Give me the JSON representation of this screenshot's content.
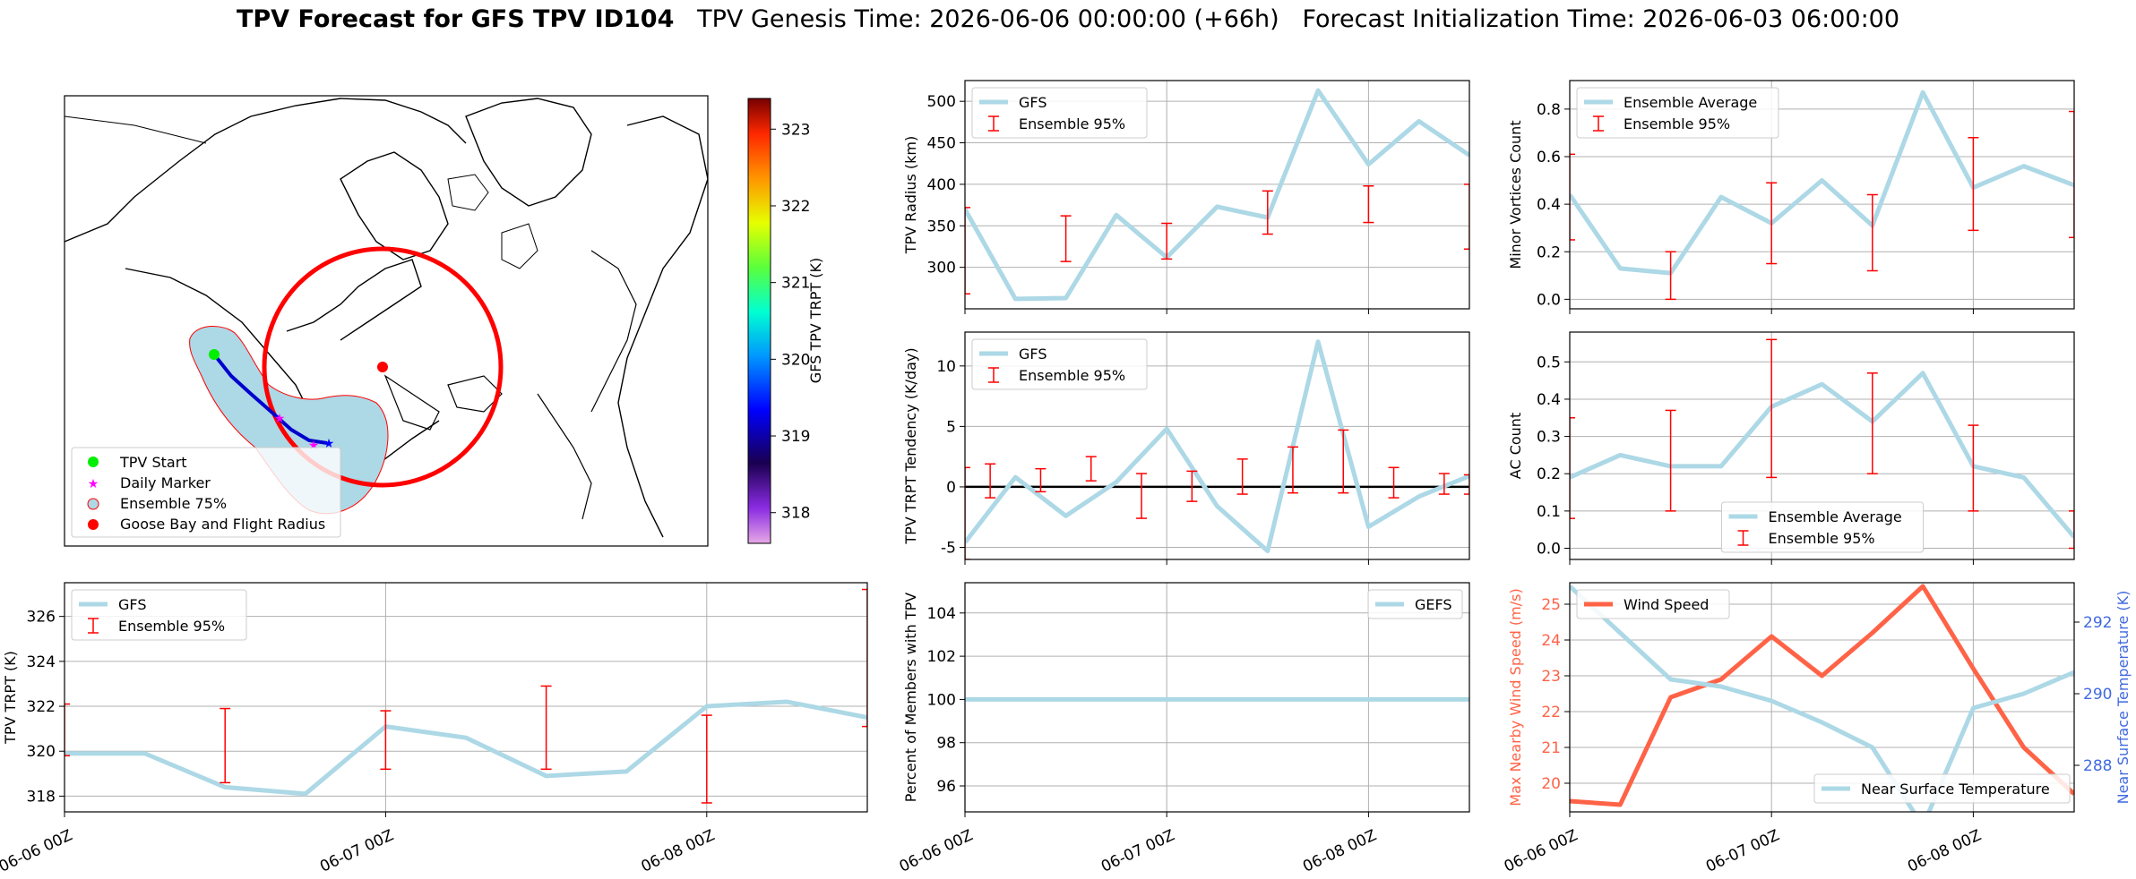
{
  "title": {
    "bold": "TPV Forecast for GFS TPV ID104",
    "genesis": "TPV Genesis Time: 2026-06-06 00:00:00 (+66h)",
    "init": "Forecast Initialization Time: 2026-06-03 06:00:00"
  },
  "colors": {
    "gfs_line": "#add8e6",
    "errorbar": "#ff0000",
    "wind": "#ff6347",
    "temp_axis": "#4169e1",
    "grid": "#b0b0b0"
  },
  "map": {
    "colorbar_label": "GFS TPV TRPT (K)",
    "colorbar_ticks": [
      "318",
      "319",
      "320",
      "321",
      "322",
      "323"
    ],
    "colorbar_range": [
      317.6,
      323.4
    ],
    "legend": [
      "TPV Start",
      "Daily Marker",
      "Ensemble 75%",
      "Goose Bay and Flight Radius"
    ]
  },
  "chart_data": [
    {
      "id": "trpt",
      "type": "line",
      "ylabel": "TPV TRPT (K)",
      "ylim": [
        317.3,
        327.5
      ],
      "yticks": [
        318,
        320,
        322,
        324,
        326
      ],
      "x": [
        0,
        0.25,
        0.5,
        0.75,
        1.0,
        1.25,
        1.5,
        1.75,
        2.0,
        2.25,
        2.5
      ],
      "series": [
        {
          "name": "GFS",
          "values": [
            319.9,
            319.9,
            318.4,
            318.1,
            321.1,
            320.6,
            318.9,
            319.1,
            322.0,
            322.2,
            321.5
          ]
        }
      ],
      "errorbars": [
        {
          "name": "Ensemble 95%",
          "x": [
            0,
            0.5,
            1.0,
            1.5,
            2.0,
            2.5
          ],
          "lo": [
            319.8,
            318.6,
            319.2,
            319.2,
            317.7,
            321.1
          ],
          "hi": [
            322.1,
            321.9,
            321.8,
            322.9,
            321.6,
            327.2
          ]
        }
      ],
      "xtick_labels": [
        "06-06 00Z",
        "06-07 00Z",
        "06-08 00Z"
      ],
      "grid": true,
      "legend_pos": "top-left"
    },
    {
      "id": "radius",
      "type": "line",
      "ylabel": "TPV Radius (km)",
      "ylim": [
        250,
        525
      ],
      "yticks": [
        300,
        350,
        400,
        450,
        500
      ],
      "x": [
        0,
        0.125,
        0.25,
        0.375,
        0.5,
        0.625,
        0.75,
        0.875,
        1.0,
        1.125,
        1.25
      ],
      "series": [
        {
          "name": "GFS",
          "values": [
            370,
            262,
            263,
            363,
            312,
            373,
            360,
            513,
            424,
            476,
            435
          ]
        }
      ],
      "errorbars": [
        {
          "name": "Ensemble 95%",
          "x": [
            0,
            0.25,
            0.5,
            0.75,
            1.0,
            1.25
          ],
          "lo": [
            268,
            307,
            310,
            340,
            354,
            322
          ],
          "hi": [
            372,
            362,
            353,
            392,
            398,
            400
          ]
        }
      ],
      "xtick_labels": [
        "",
        "",
        ""
      ],
      "grid": true,
      "legend_pos": "top-left"
    },
    {
      "id": "tendency",
      "type": "line",
      "ylabel": "TPV TRPT Tendency (K/day)",
      "ylim": [
        -6.0,
        12.8
      ],
      "yticks": [
        -5,
        0,
        5,
        10
      ],
      "x": [
        0,
        0.125,
        0.25,
        0.375,
        0.5,
        0.625,
        0.75,
        0.875,
        1.0,
        1.125,
        1.25
      ],
      "series": [
        {
          "name": "GFS",
          "values": [
            -4.6,
            0.8,
            -2.4,
            0.4,
            4.8,
            -1.6,
            -5.3,
            12.0,
            -3.3,
            -0.8,
            0.9
          ]
        }
      ],
      "errorbars": [
        {
          "name": "Ensemble 95%",
          "x": [
            0,
            0.0625,
            0.1875,
            0.3125,
            0.4375,
            0.5625,
            0.6875,
            0.8125,
            0.9375,
            1.0625,
            1.1875,
            1.25
          ],
          "lo": [
            -6.0,
            -0.9,
            -0.4,
            0.5,
            -2.6,
            -1.2,
            -0.6,
            -0.5,
            -0.5,
            -0.9,
            -0.6,
            -0.6
          ],
          "hi": [
            1.6,
            1.9,
            1.5,
            2.5,
            1.1,
            1.3,
            2.3,
            3.3,
            4.7,
            1.6,
            1.1,
            1.0
          ]
        }
      ],
      "hline": 0,
      "xtick_labels": [
        "",
        "",
        ""
      ],
      "grid": true,
      "legend_pos": "top-left"
    },
    {
      "id": "members",
      "type": "line",
      "ylabel": "Percent of Members with TPV",
      "ylim": [
        94.8,
        105.4
      ],
      "yticks": [
        96,
        98,
        100,
        102,
        104
      ],
      "x": [
        0,
        1.25
      ],
      "series": [
        {
          "name": "GEFS",
          "values": [
            100,
            100
          ]
        }
      ],
      "xtick_labels": [
        "06-06 00Z",
        "06-07 00Z",
        "06-08 00Z"
      ],
      "grid": true,
      "legend_pos": "top-right"
    },
    {
      "id": "minor",
      "type": "line",
      "ylabel": "Minor Vortices Count",
      "ylim": [
        -0.04,
        0.92
      ],
      "yticks": [
        0.0,
        0.2,
        0.4,
        0.6,
        0.8
      ],
      "x": [
        0,
        0.125,
        0.25,
        0.375,
        0.5,
        0.625,
        0.75,
        0.875,
        1.0,
        1.125,
        1.25
      ],
      "series": [
        {
          "name": "Ensemble Average",
          "values": [
            0.44,
            0.13,
            0.11,
            0.43,
            0.32,
            0.5,
            0.31,
            0.87,
            0.47,
            0.56,
            0.48
          ]
        }
      ],
      "errorbars": [
        {
          "name": "Ensemble 95%",
          "x": [
            0,
            0.25,
            0.5,
            0.75,
            1.0,
            1.25
          ],
          "lo": [
            0.25,
            0.0,
            0.15,
            0.12,
            0.29,
            0.26
          ],
          "hi": [
            0.61,
            0.2,
            0.49,
            0.44,
            0.68,
            0.79
          ]
        }
      ],
      "xtick_labels": [
        "",
        "",
        ""
      ],
      "grid": true,
      "legend_pos": "top-left"
    },
    {
      "id": "ac",
      "type": "line",
      "ylabel": "AC Count",
      "ylim": [
        -0.03,
        0.58
      ],
      "yticks": [
        0.0,
        0.1,
        0.2,
        0.3,
        0.4,
        0.5
      ],
      "x": [
        0,
        0.125,
        0.25,
        0.375,
        0.5,
        0.625,
        0.75,
        0.875,
        1.0,
        1.125,
        1.25
      ],
      "series": [
        {
          "name": "Ensemble Average",
          "values": [
            0.19,
            0.25,
            0.22,
            0.22,
            0.38,
            0.44,
            0.34,
            0.47,
            0.22,
            0.19,
            0.03
          ]
        }
      ],
      "errorbars": [
        {
          "name": "Ensemble 95%",
          "x": [
            0,
            0.25,
            0.5,
            0.75,
            1.0,
            1.25
          ],
          "lo": [
            0.08,
            0.1,
            0.19,
            0.2,
            0.1,
            0.0
          ],
          "hi": [
            0.35,
            0.37,
            0.56,
            0.47,
            0.33,
            0.1
          ]
        }
      ],
      "xtick_labels": [
        "",
        "",
        ""
      ],
      "grid": true,
      "legend_pos": "bottom-center"
    },
    {
      "id": "wind_temp",
      "type": "line",
      "ylabel": "Max Nearby Wind Speed (m/s)",
      "ylabel_right": "Near Surface Temperature (K)",
      "ylim": [
        19.2,
        25.6
      ],
      "yticks": [
        20,
        21,
        22,
        23,
        24,
        25
      ],
      "ylim_right": [
        286.7,
        293.1
      ],
      "yticks_right": [
        288,
        290,
        292
      ],
      "x": [
        0,
        0.125,
        0.25,
        0.375,
        0.5,
        0.625,
        0.75,
        0.875,
        1.0,
        1.125,
        1.25
      ],
      "series": [
        {
          "name": "Wind Speed",
          "axis": "left",
          "values": [
            19.5,
            19.4,
            22.4,
            22.9,
            24.1,
            23.0,
            24.2,
            25.5,
            23.2,
            21.0,
            19.7
          ]
        },
        {
          "name": "Near Surface Temperature",
          "axis": "right",
          "values": [
            293.0,
            291.7,
            290.4,
            290.2,
            289.8,
            289.2,
            288.5,
            286.3,
            289.6,
            290.0,
            290.6
          ]
        }
      ],
      "xtick_labels": [
        "06-06 00Z",
        "06-07 00Z",
        "06-08 00Z"
      ],
      "grid": true,
      "legend_pos": "top-left / bottom-right"
    }
  ]
}
